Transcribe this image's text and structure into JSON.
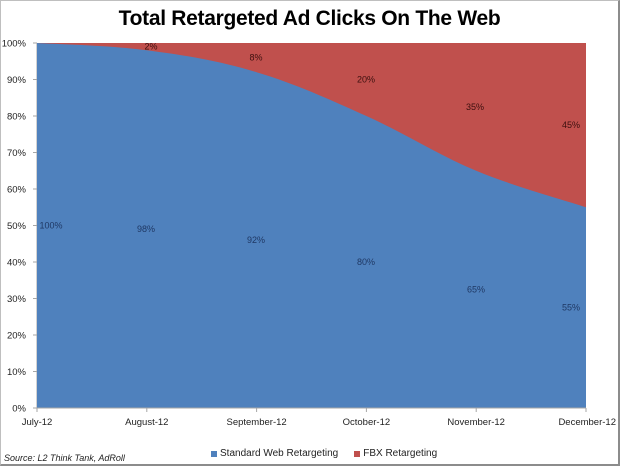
{
  "chart_data": {
    "type": "area",
    "stacked": "percent",
    "title": "Total Retargeted Ad Clicks On The Web",
    "xlabel": "",
    "ylabel": "",
    "ylim": [
      0,
      100
    ],
    "yticks": [
      "0%",
      "10%",
      "20%",
      "30%",
      "40%",
      "50%",
      "60%",
      "70%",
      "80%",
      "90%",
      "100%"
    ],
    "categories": [
      "July-12",
      "August-12",
      "September-12",
      "October-12",
      "November-12",
      "December-12"
    ],
    "series": [
      {
        "name": "Standard Web Retargeting",
        "color": "#4F81BD",
        "values": [
          100,
          98,
          92,
          80,
          65,
          55
        ],
        "labels": [
          "100%",
          "98%",
          "92%",
          "80%",
          "65%",
          "55%"
        ]
      },
      {
        "name": "FBX Retargeting",
        "color": "#C0504D",
        "values": [
          0,
          2,
          8,
          20,
          35,
          45
        ],
        "labels": [
          "",
          "2%",
          "8%",
          "20%",
          "35%",
          "45%"
        ]
      }
    ],
    "grid": false,
    "legend_position": "bottom",
    "source": "Source: L2 Think Tank, AdRoll"
  },
  "title": "Total Retargeted Ad Clicks On The Web",
  "legend": {
    "items": [
      {
        "label": "Standard Web Retargeting",
        "color": "#4F81BD"
      },
      {
        "label": "FBX Retargeting",
        "color": "#C0504D"
      }
    ]
  },
  "source": "Source: L2 Think Tank, AdRoll"
}
